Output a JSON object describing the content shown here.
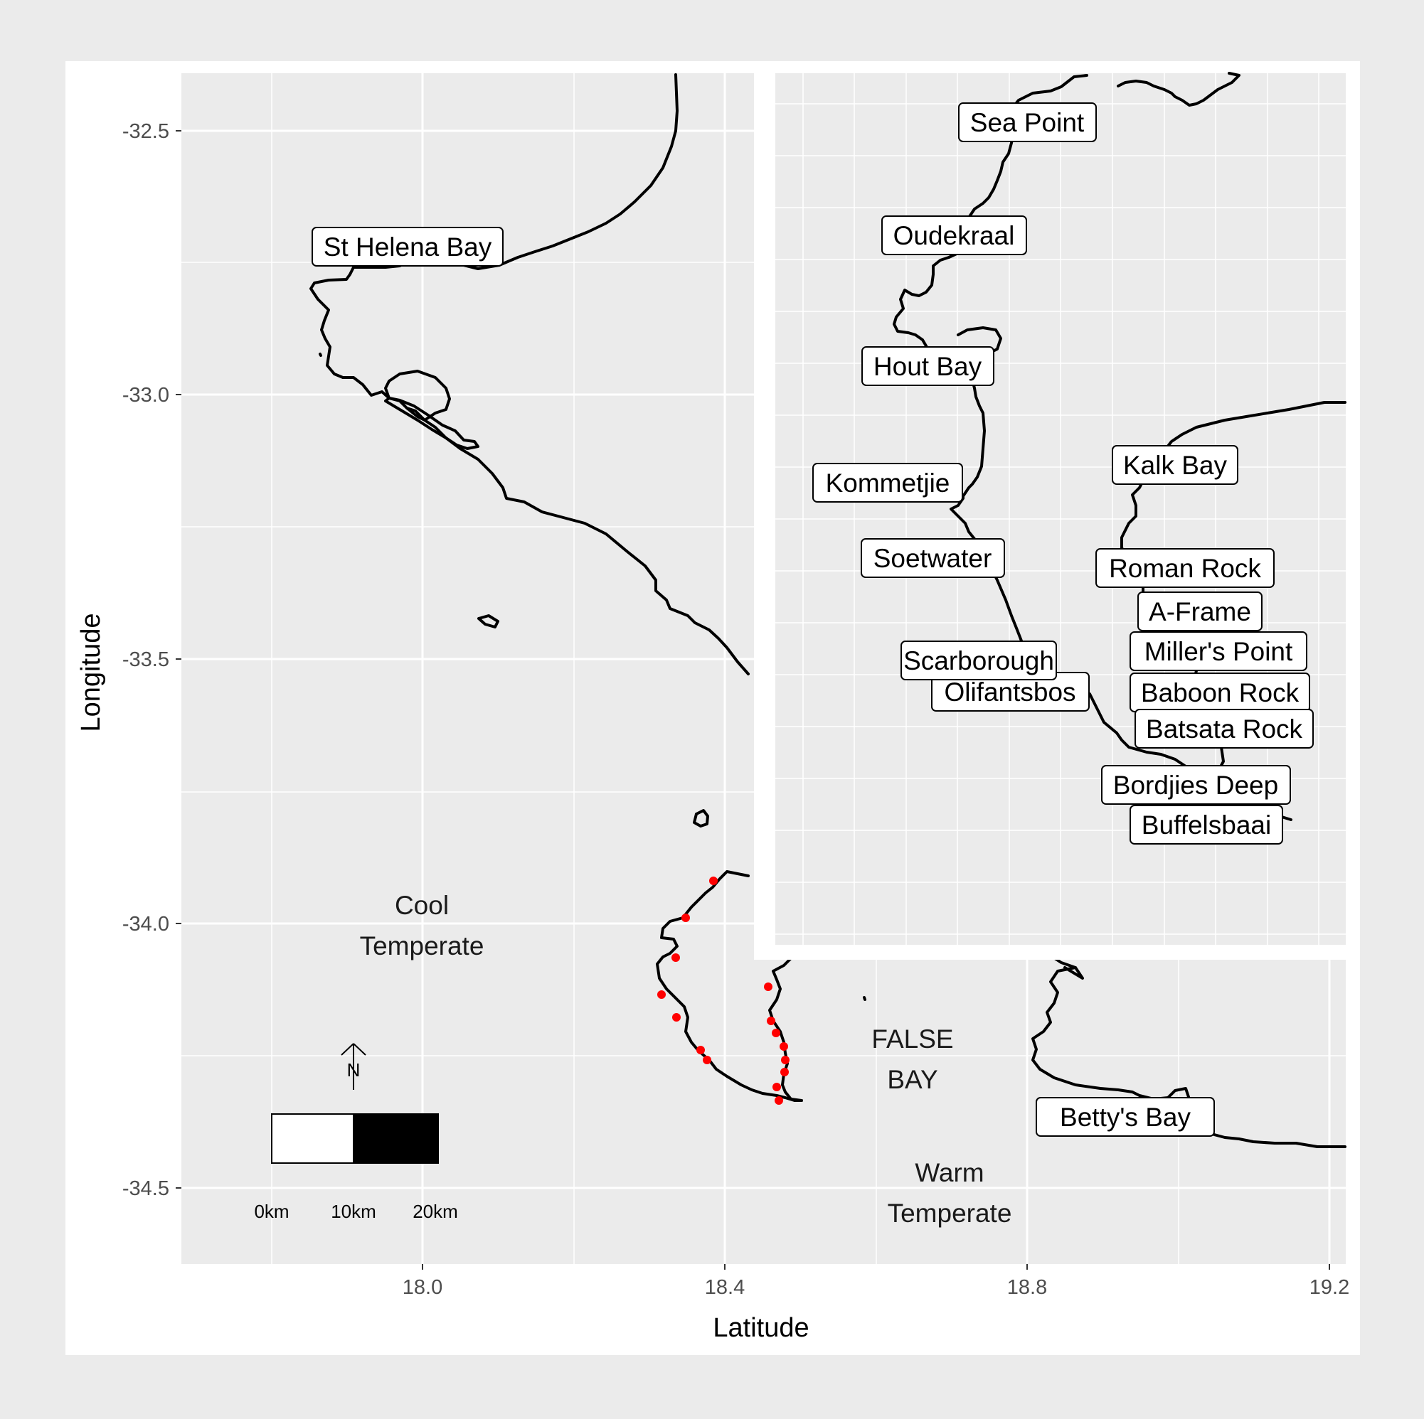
{
  "axes": {
    "x_title": "Latitude",
    "y_title": "Longitude",
    "x_ticks": [
      "18.0",
      "18.4",
      "18.8",
      "19.2"
    ],
    "y_ticks": [
      "-32.5",
      "-33.0",
      "-33.5",
      "-34.0",
      "-34.5"
    ]
  },
  "region_labels": {
    "cool_line1": "Cool",
    "cool_line2": "Temperate",
    "warm_line1": "Warm",
    "warm_line2": "Temperate",
    "bay_line1": "FALSE",
    "bay_line2": "BAY"
  },
  "main_sites": [
    {
      "label": "St Helena Bay"
    },
    {
      "label": "Betty's Bay"
    }
  ],
  "inset_sites": [
    {
      "label": "Sea Point"
    },
    {
      "label": "Oudekraal"
    },
    {
      "label": "Hout Bay"
    },
    {
      "label": "Kommetjie"
    },
    {
      "label": "Soetwater"
    },
    {
      "label": "Scarborough"
    },
    {
      "label": "Olifantsbos"
    },
    {
      "label": "Kalk Bay"
    },
    {
      "label": "Roman Rock"
    },
    {
      "label": "A-Frame"
    },
    {
      "label": "Miller's Point"
    },
    {
      "label": "Baboon Rock"
    },
    {
      "label": "Batsata Rock"
    },
    {
      "label": "Bordjies Deep"
    },
    {
      "label": "Buffelsbaai"
    }
  ],
  "north_arrow": {
    "label": "N"
  },
  "scale_bar": {
    "labels": [
      "0km",
      "10km",
      "20km"
    ]
  },
  "colors": {
    "panel_bg": "#ebebeb",
    "gridline": "#ffffff",
    "coastline": "#000000",
    "site_point": "#ff0000"
  }
}
